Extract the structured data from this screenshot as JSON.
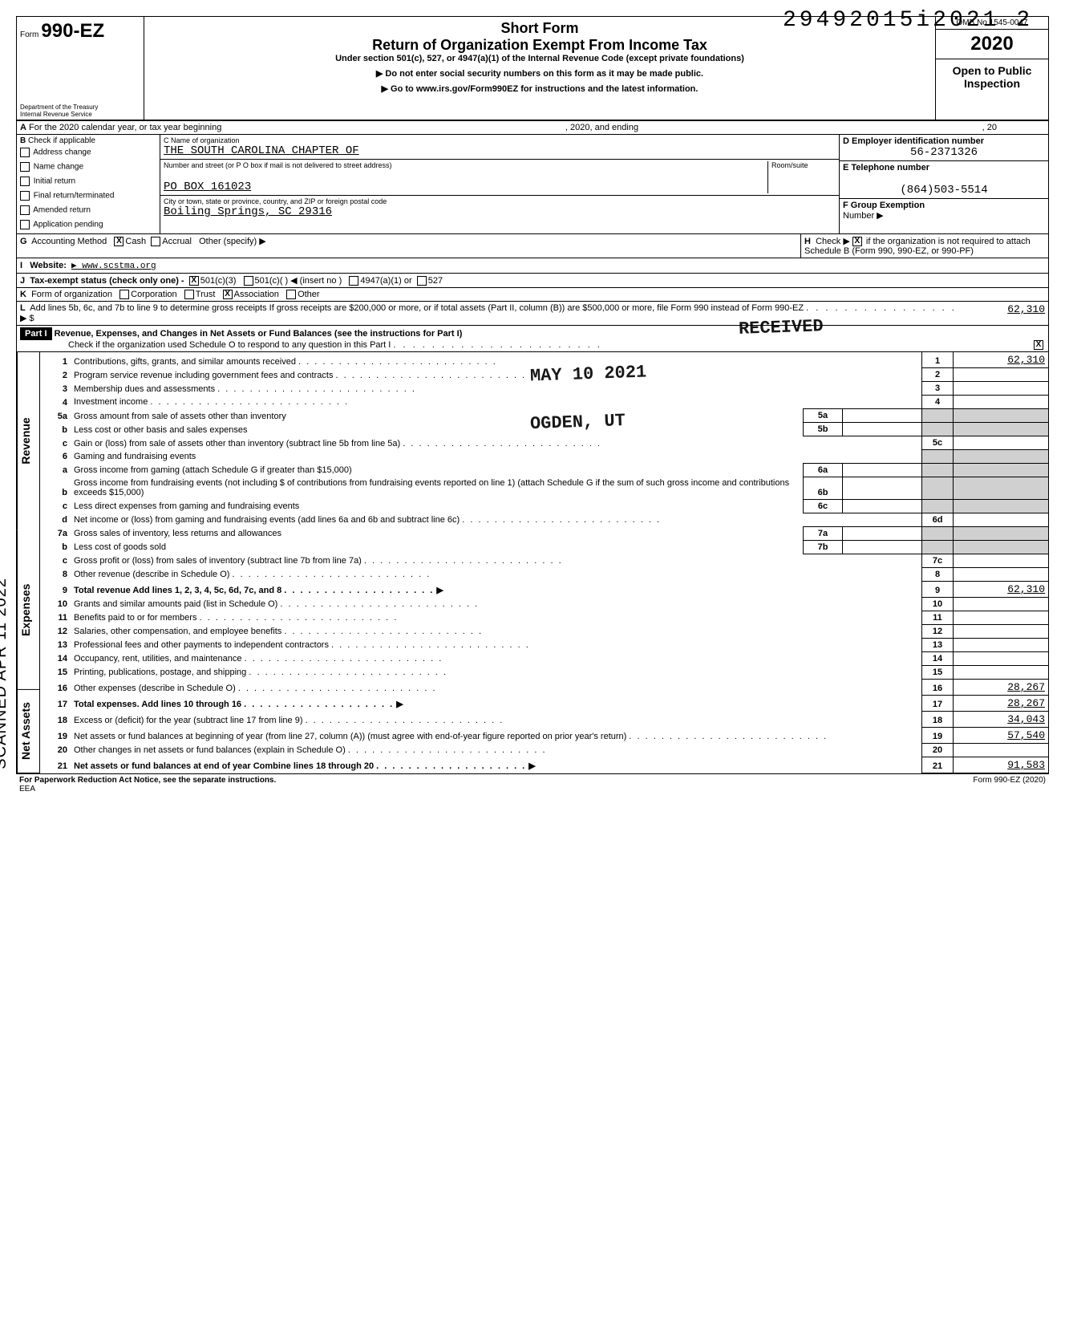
{
  "dln": "29492015i2021  2",
  "header": {
    "form_prefix": "Form",
    "form_number": "990-EZ",
    "dept": "Department of the Treasury\nInternal Revenue Service",
    "short": "Short Form",
    "title": "Return of Organization Exempt From Income Tax",
    "sub": "Under section 501(c), 527, or 4947(a)(1) of the Internal Revenue Code (except private foundations)",
    "note1": "▶ Do not enter social security numbers on this form as it may be made public.",
    "note2": "▶ Go to www.irs.gov/Form990EZ for instructions and the latest information.",
    "omb": "OMB No 1545-0047",
    "year": "2020",
    "open": "Open to Public Inspection"
  },
  "line_a": {
    "label_a": "A",
    "text": "For the 2020 calendar year, or tax year beginning",
    "mid": ", 2020, and ending",
    "end": ", 20"
  },
  "box_b": {
    "label": "B",
    "sub": "Check if applicable",
    "items": [
      "Address change",
      "Name change",
      "Initial return",
      "Final return/terminated",
      "Amended return",
      "Application pending"
    ]
  },
  "box_c": {
    "label_name": "C   Name of organization",
    "name": "THE SOUTH CAROLINA CHAPTER OF",
    "label_addr": "Number and street (or P O  box if mail is not delivered to street address)",
    "room": "Room/suite",
    "addr": "PO BOX 161023",
    "label_city": "City or town, state or province, country, and ZIP or foreign postal code",
    "city": "Boiling Springs, SC 29316"
  },
  "box_d": {
    "label": "D  Employer identification number",
    "ein": "56-2371326",
    "label_e": "E  Telephone number",
    "phone": "(864)503-5514",
    "label_f": "F  Group Exemption",
    "number": "Number  ▶"
  },
  "line_g": {
    "label": "G",
    "text": "Accounting Method",
    "cash": "Cash",
    "accrual": "Accrual",
    "other": "Other (specify) ▶",
    "cash_checked": "X"
  },
  "line_h": {
    "label": "H",
    "text": "Check ▶",
    "check": "X",
    "rest": "if the organization is not required to attach Schedule B (Form 990, 990-EZ, or 990-PF)"
  },
  "line_i": {
    "label": "I",
    "text": "Website:",
    "val": "▶ www.scstma.org"
  },
  "line_j": {
    "label": "J",
    "text": "Tax-exempt status (check only one) -",
    "c3": "501(c)(3)",
    "c3_check": "X",
    "c": "501(c)(",
    "insert": ") ◀ (insert no )",
    "a1": "4947(a)(1) or",
    "527": "527"
  },
  "line_k": {
    "label": "K",
    "text": "Form of organization",
    "corp": "Corporation",
    "trust": "Trust",
    "assoc": "Association",
    "assoc_check": "X",
    "other": "Other"
  },
  "line_l": {
    "label": "L",
    "text": "Add lines 5b, 6c, and 7b to line 9 to determine gross receipts  If gross receipts are $200,000 or more, or if total assets (Part II, column (B)) are $500,000 or more, file Form 990 instead of Form 990-EZ",
    "arrow": "▶ $",
    "val": "62,310"
  },
  "part1": {
    "label": "Part I",
    "title": "Revenue, Expenses, and Changes in Net Assets or Fund Balances (see the instructions for Part I)",
    "check": "Check if the organization used Schedule O to respond to any question in this Part I",
    "check_val": "X"
  },
  "stamps": {
    "received": "RECEIVED",
    "date": "MAY 10 2021",
    "ogden": "OGDEN, UT",
    "scanned": "SCANNED APR 11 2022"
  },
  "sections": {
    "rev": "Revenue",
    "exp": "Expenses",
    "na": "Net Assets"
  },
  "lines": [
    {
      "n": "1",
      "t": "Contributions, gifts, grants, and similar amounts received",
      "box": "1",
      "amt": "62,310"
    },
    {
      "n": "2",
      "t": "Program service revenue including government fees and contracts",
      "box": "2",
      "amt": ""
    },
    {
      "n": "3",
      "t": "Membership dues and assessments",
      "box": "3",
      "amt": ""
    },
    {
      "n": "4",
      "t": "Investment income",
      "box": "4",
      "amt": ""
    },
    {
      "n": "5a",
      "t": "Gross amount from sale of assets other than inventory",
      "mid": "5a"
    },
    {
      "n": "b",
      "t": "Less cost or other basis and sales expenses",
      "mid": "5b"
    },
    {
      "n": "c",
      "t": "Gain or (loss) from sale of assets other than inventory (subtract line 5b from line 5a)",
      "box": "5c",
      "amt": ""
    },
    {
      "n": "6",
      "t": "Gaming and fundraising events"
    },
    {
      "n": "a",
      "t": "Gross income from gaming (attach Schedule G if greater than $15,000)",
      "mid": "6a"
    },
    {
      "n": "b",
      "t": "Gross income from fundraising events (not including   $               of contributions from fundraising events reported on line 1) (attach Schedule G if the sum of such gross income and contributions exceeds $15,000)",
      "mid": "6b"
    },
    {
      "n": "c",
      "t": "Less direct expenses from gaming and fundraising events",
      "mid": "6c"
    },
    {
      "n": "d",
      "t": "Net income or (loss) from gaming and fundraising events (add lines 6a and 6b and subtract line 6c)",
      "box": "6d",
      "amt": ""
    },
    {
      "n": "7a",
      "t": "Gross sales of inventory, less returns and allowances",
      "mid": "7a"
    },
    {
      "n": "b",
      "t": "Less cost of goods sold",
      "mid": "7b"
    },
    {
      "n": "c",
      "t": "Gross profit or (loss) from sales of inventory (subtract line 7b from line 7a)",
      "box": "7c",
      "amt": ""
    },
    {
      "n": "8",
      "t": "Other revenue (describe in Schedule O)",
      "box": "8",
      "amt": ""
    },
    {
      "n": "9",
      "t": "Total revenue  Add lines 1, 2, 3, 4, 5c, 6d, 7c, and 8",
      "box": "9",
      "amt": "62,310",
      "arrow": true,
      "bold": true
    },
    {
      "n": "10",
      "t": "Grants and similar amounts paid (list in Schedule O)",
      "box": "10",
      "amt": ""
    },
    {
      "n": "11",
      "t": "Benefits paid to or for members",
      "box": "11",
      "amt": ""
    },
    {
      "n": "12",
      "t": "Salaries, other compensation, and employee benefits",
      "box": "12",
      "amt": ""
    },
    {
      "n": "13",
      "t": "Professional fees and other payments to independent contractors",
      "box": "13",
      "amt": ""
    },
    {
      "n": "14",
      "t": "Occupancy, rent, utilities, and maintenance",
      "box": "14",
      "amt": ""
    },
    {
      "n": "15",
      "t": "Printing, publications, postage, and shipping",
      "box": "15",
      "amt": ""
    },
    {
      "n": "16",
      "t": "Other expenses (describe in Schedule O)",
      "box": "16",
      "amt": "28,267"
    },
    {
      "n": "17",
      "t": "Total expenses.  Add lines 10 through 16",
      "box": "17",
      "amt": "28,267",
      "arrow": true,
      "bold": true
    },
    {
      "n": "18",
      "t": "Excess or (deficit) for the year (subtract line 17 from line 9)",
      "box": "18",
      "amt": "34,043"
    },
    {
      "n": "19",
      "t": "Net assets or fund balances at beginning of year (from line 27, column (A)) (must agree with end-of-year figure reported on prior year's return)",
      "box": "19",
      "amt": "57,540"
    },
    {
      "n": "20",
      "t": "Other changes in net assets or fund balances (explain in Schedule O)",
      "box": "20",
      "amt": ""
    },
    {
      "n": "21",
      "t": "Net assets or fund balances at end of year  Combine lines 18 through 20",
      "box": "21",
      "amt": "91,583",
      "arrow": true,
      "bold": true
    }
  ],
  "footer": {
    "left": "For Paperwork Reduction Act Notice, see the separate instructions.",
    "eea": "EEA",
    "right": "Form 990-EZ (2020)"
  }
}
